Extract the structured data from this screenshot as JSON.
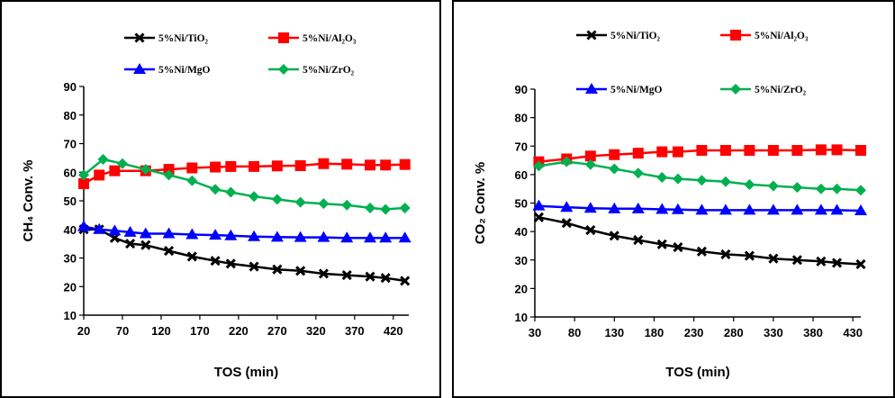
{
  "chart_data": [
    {
      "type": "line",
      "id": "left",
      "xlabel": "TOS (min)",
      "ylabel": "CH₄ Conv. %",
      "xlim": [
        20,
        440
      ],
      "ylim": [
        10,
        90
      ],
      "xticks": [
        20,
        70,
        120,
        170,
        220,
        270,
        320,
        370,
        420
      ],
      "yticks": [
        10,
        20,
        30,
        40,
        50,
        60,
        70,
        80,
        90
      ],
      "grid": false,
      "legend": "top, two columns",
      "series": [
        {
          "name": "5%Ni/TiO₂",
          "color": "#000000",
          "marker": "x",
          "x": [
            20,
            40,
            60,
            80,
            100,
            130,
            160,
            190,
            210,
            240,
            270,
            300,
            330,
            360,
            390,
            410,
            435
          ],
          "y": [
            40,
            40,
            37,
            35,
            34.5,
            32.5,
            30.5,
            29,
            28,
            27,
            26,
            25.5,
            24.5,
            24,
            23.5,
            23,
            22
          ]
        },
        {
          "name": "5%Ni/Al₂O₃",
          "color": "#ff0000",
          "marker": "square",
          "x": [
            20,
            40,
            60,
            100,
            130,
            160,
            190,
            210,
            240,
            270,
            300,
            330,
            360,
            390,
            410,
            435
          ],
          "y": [
            56,
            59,
            60.5,
            60.5,
            61,
            61.5,
            61.8,
            62,
            62,
            62.2,
            62.3,
            63,
            62.8,
            62.5,
            62.5,
            62.7
          ]
        },
        {
          "name": "5%Ni/MgO",
          "color": "#0000ff",
          "marker": "triangle",
          "x": [
            20,
            40,
            60,
            80,
            100,
            130,
            160,
            190,
            210,
            240,
            270,
            300,
            330,
            360,
            390,
            410,
            435
          ],
          "y": [
            41,
            40,
            39.5,
            39,
            38.5,
            38.5,
            38.2,
            38,
            37.8,
            37.5,
            37.3,
            37.2,
            37.2,
            37,
            37,
            37,
            37
          ]
        },
        {
          "name": "5%Ni/ZrO₂",
          "color": "#00b050",
          "marker": "diamond",
          "x": [
            20,
            45,
            70,
            100,
            130,
            160,
            190,
            210,
            240,
            270,
            300,
            330,
            360,
            390,
            410,
            435
          ],
          "y": [
            59,
            64.5,
            63,
            61,
            59,
            57,
            54,
            53,
            51.5,
            50.5,
            49.5,
            49,
            48.5,
            47.5,
            47,
            47.5
          ]
        }
      ]
    },
    {
      "type": "line",
      "id": "right",
      "xlabel": "TOS (min)",
      "ylabel": "CO₂ Conv. %",
      "xlim": [
        30,
        440
      ],
      "ylim": [
        10,
        90
      ],
      "xticks": [
        30,
        80,
        130,
        180,
        230,
        280,
        330,
        380,
        430
      ],
      "yticks": [
        10,
        20,
        30,
        40,
        50,
        60,
        70,
        80,
        90
      ],
      "grid": false,
      "legend": "top, two columns",
      "series": [
        {
          "name": "5%Ni/TiO₂",
          "color": "#000000",
          "marker": "x",
          "x": [
            35,
            70,
            100,
            130,
            160,
            190,
            210,
            240,
            270,
            300,
            330,
            360,
            390,
            410,
            440
          ],
          "y": [
            45,
            43,
            40.5,
            38.5,
            37,
            35.5,
            34.5,
            33,
            32,
            31.5,
            30.5,
            30,
            29.5,
            29,
            28.5
          ]
        },
        {
          "name": "5%Ni/Al₂O₃",
          "color": "#ff0000",
          "marker": "square",
          "x": [
            35,
            70,
            100,
            130,
            160,
            190,
            210,
            240,
            270,
            300,
            330,
            360,
            390,
            410,
            440
          ],
          "y": [
            64.5,
            65.5,
            66.5,
            67,
            67.5,
            68,
            68,
            68.5,
            68.5,
            68.5,
            68.5,
            68.5,
            68.7,
            68.7,
            68.5
          ]
        },
        {
          "name": "5%Ni/MgO",
          "color": "#0000ff",
          "marker": "triangle",
          "x": [
            35,
            70,
            100,
            130,
            160,
            190,
            210,
            240,
            270,
            300,
            330,
            360,
            390,
            410,
            440
          ],
          "y": [
            49,
            48.5,
            48.2,
            48,
            48,
            47.8,
            47.7,
            47.5,
            47.5,
            47.5,
            47.5,
            47.5,
            47.5,
            47.5,
            47.3
          ]
        },
        {
          "name": "5%Ni/ZrO₂",
          "color": "#00b050",
          "marker": "diamond",
          "x": [
            35,
            70,
            100,
            130,
            160,
            190,
            210,
            240,
            270,
            300,
            330,
            360,
            390,
            410,
            440
          ],
          "y": [
            63,
            64.5,
            63.5,
            62,
            60.5,
            59,
            58.5,
            58,
            57.5,
            56.5,
            56,
            55.5,
            55,
            55,
            54.5
          ]
        }
      ]
    }
  ]
}
